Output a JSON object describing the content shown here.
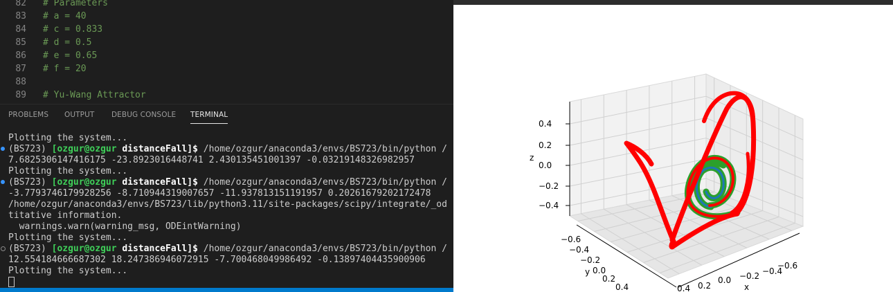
{
  "editor": {
    "lines": [
      {
        "num": "82",
        "text": "# Parameters"
      },
      {
        "num": "83",
        "text": "# a = 40"
      },
      {
        "num": "84",
        "text": "# c = 0.833"
      },
      {
        "num": "85",
        "text": "# d = 0.5"
      },
      {
        "num": "86",
        "text": "# e = 0.65"
      },
      {
        "num": "87",
        "text": "# f = 20"
      },
      {
        "num": "88",
        "text": ""
      },
      {
        "num": "89",
        "text": "# Yu-Wang Attractor"
      }
    ]
  },
  "panel": {
    "tabs": [
      "PROBLEMS",
      "OUTPUT",
      "DEBUG CONSOLE",
      "TERMINAL"
    ],
    "active_tab": "TERMINAL"
  },
  "terminal": {
    "line1": "Plotting the system...",
    "prompt_env": "(BS723) ",
    "prompt_user": "[ozgur@ozgur",
    "prompt_dir": "distanceFall",
    "prompt_end": "]$ ",
    "command": "/home/ozgur/anaconda3/envs/BS723/bin/python /",
    "out1": "7.6825306147416175 -23.8923016448741 2.430135451001397 -0.03219148326982957",
    "plot2": "Plotting the system...",
    "out2": "-3.7793746179928256 -8.710944319007657 -11.937813151191957 0.20261679202172478",
    "warn1": "/home/ozgur/anaconda3/envs/BS723/lib/python3.11/site-packages/scipy/integrate/_od",
    "warn2": "titative information.",
    "warn3": "  warnings.warn(warning_msg, ODEintWarning)",
    "plot3": "Plotting the system...",
    "out3": "12.554184666687302 18.247386946072915 -7.700468049986492 -0.13897404435900906",
    "plot4": "Plotting the system..."
  },
  "chart_data": {
    "type": "line",
    "projection": "3d",
    "xlabel": "x",
    "ylabel": "y",
    "zlabel": "z",
    "x_ticks": [
      "−0.6",
      "−0.4",
      "−0.2",
      "0.0",
      "0.2",
      "0.4"
    ],
    "y_ticks": [
      "−0.6",
      "−0.4",
      "−0.2",
      "0.0",
      "0.2",
      "0.4"
    ],
    "z_ticks": [
      "−0.4",
      "−0.2",
      "0.0",
      "0.2",
      "0.4"
    ],
    "series_colors": [
      "#1f77b4",
      "#ff7f0e",
      "#2ca02c",
      "#ff0000"
    ],
    "grid": true
  }
}
